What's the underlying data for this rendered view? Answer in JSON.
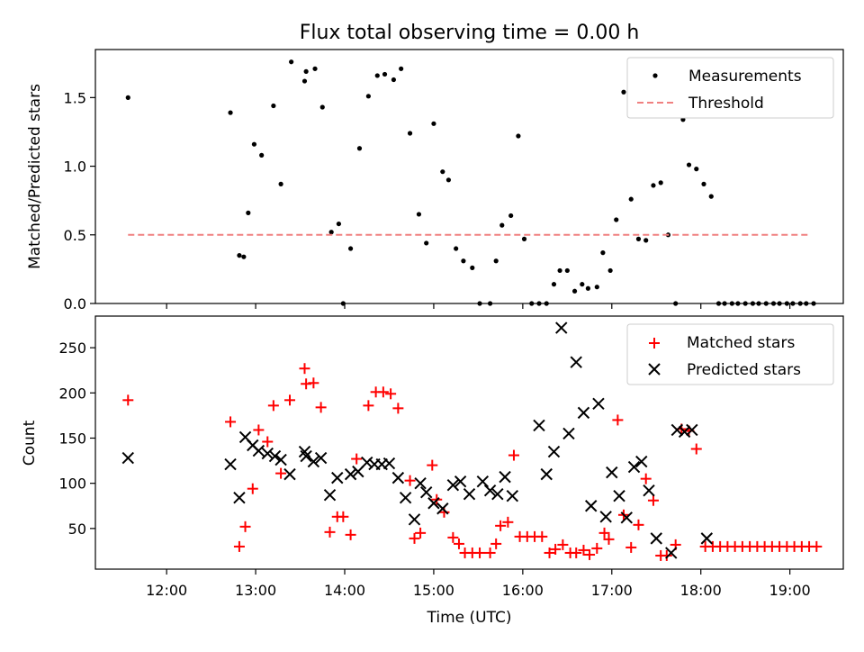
{
  "figure": {
    "title": "Flux total observing time = 0.00 h"
  },
  "chart_data": [
    {
      "type": "scatter",
      "title": "Flux total observing time = 0.00 h",
      "xlabel": "",
      "ylabel": "Matched/Predicted stars",
      "xlim": [
        "11:12",
        "19:36"
      ],
      "ylim": [
        0,
        1.85
      ],
      "yticks": [
        0.0,
        0.5,
        1.0,
        1.5
      ],
      "grid": false,
      "legend_placement": "top-right",
      "series": [
        {
          "name": "Measurements",
          "marker": "dot",
          "color": "#000000",
          "points": [
            [
              "11:34",
              1.5
            ],
            [
              "12:43",
              1.39
            ],
            [
              "12:55",
              0.66
            ],
            [
              "12:59",
              1.16
            ],
            [
              "13:04",
              1.08
            ],
            [
              "13:12",
              1.44
            ],
            [
              "13:17",
              0.87
            ],
            [
              "13:24",
              1.76
            ],
            [
              "13:33",
              1.62
            ],
            [
              "13:34",
              1.69
            ],
            [
              "13:40",
              1.71
            ],
            [
              "13:45",
              1.43
            ],
            [
              "13:51",
              0.52
            ],
            [
              "13:56",
              0.58
            ],
            [
              "13:59",
              0.0
            ],
            [
              "14:04",
              0.4
            ],
            [
              "14:10",
              1.13
            ],
            [
              "14:16",
              1.51
            ],
            [
              "14:22",
              1.66
            ],
            [
              "14:27",
              1.67
            ],
            [
              "14:33",
              1.63
            ],
            [
              "14:38",
              1.71
            ],
            [
              "14:44",
              1.24
            ],
            [
              "14:50",
              0.65
            ],
            [
              "14:55",
              0.44
            ],
            [
              "15:00",
              1.31
            ],
            [
              "15:06",
              0.96
            ],
            [
              "15:10",
              0.9
            ],
            [
              "15:15",
              0.4
            ],
            [
              "15:20",
              0.31
            ],
            [
              "15:26",
              0.26
            ],
            [
              "15:31",
              0.0
            ],
            [
              "15:38",
              0.0
            ],
            [
              "15:42",
              0.31
            ],
            [
              "15:46",
              0.57
            ],
            [
              "15:52",
              0.64
            ],
            [
              "15:57",
              1.22
            ],
            [
              "16:01",
              0.47
            ],
            [
              "16:06",
              0.0
            ],
            [
              "16:11",
              0.0
            ],
            [
              "16:16",
              0.0
            ],
            [
              "16:21",
              0.14
            ],
            [
              "16:25",
              0.24
            ],
            [
              "16:30",
              0.24
            ],
            [
              "16:35",
              0.09
            ],
            [
              "16:40",
              0.14
            ],
            [
              "16:44",
              0.11
            ],
            [
              "16:50",
              0.12
            ],
            [
              "16:54",
              0.37
            ],
            [
              "16:59",
              0.24
            ],
            [
              "17:03",
              0.61
            ],
            [
              "17:08",
              1.54
            ],
            [
              "17:13",
              0.76
            ],
            [
              "17:18",
              0.47
            ],
            [
              "17:23",
              0.46
            ],
            [
              "17:28",
              0.86
            ],
            [
              "17:33",
              0.88
            ],
            [
              "17:38",
              0.5
            ],
            [
              "17:43",
              0.0
            ],
            [
              "17:48",
              1.34
            ],
            [
              "17:52",
              1.01
            ],
            [
              "17:57",
              0.98
            ],
            [
              "18:02",
              0.87
            ],
            [
              "18:07",
              0.78
            ],
            [
              "18:12",
              0.0
            ],
            [
              "18:16",
              0.0
            ],
            [
              "18:21",
              0.0
            ],
            [
              "18:25",
              0.0
            ],
            [
              "18:30",
              0.0
            ],
            [
              "18:35",
              0.0
            ],
            [
              "18:39",
              0.0
            ],
            [
              "18:44",
              0.0
            ],
            [
              "18:49",
              0.0
            ],
            [
              "18:53",
              0.0
            ],
            [
              "18:58",
              0.0
            ],
            [
              "19:02",
              0.0
            ],
            [
              "19:07",
              0.0
            ],
            [
              "19:11",
              0.0
            ],
            [
              "19:16",
              0.0
            ],
            [
              "12:49",
              0.35
            ],
            [
              "12:52",
              0.34
            ]
          ]
        },
        {
          "name": "Threshold",
          "marker": "dashed-line",
          "color": "#f08080",
          "points": [
            [
              "11:34",
              0.5
            ],
            [
              "19:14",
              0.5
            ]
          ]
        }
      ]
    },
    {
      "type": "scatter",
      "title": "",
      "xlabel": "Time (UTC)",
      "ylabel": "Count",
      "xlim": [
        "11:12",
        "19:36"
      ],
      "ylim": [
        5,
        285
      ],
      "xticks": [
        "12:00",
        "13:00",
        "14:00",
        "15:00",
        "16:00",
        "17:00",
        "18:00",
        "19:00"
      ],
      "yticks": [
        50,
        100,
        150,
        200,
        250
      ],
      "grid": false,
      "legend_placement": "top-right",
      "series": [
        {
          "name": "Matched stars",
          "marker": "plus",
          "color": "#ff0000",
          "points": [
            [
              "11:34",
              192
            ],
            [
              "12:43",
              168
            ],
            [
              "12:49",
              30
            ],
            [
              "12:53",
              52
            ],
            [
              "12:58",
              94
            ],
            [
              "13:02",
              159
            ],
            [
              "13:08",
              146
            ],
            [
              "13:12",
              186
            ],
            [
              "13:17",
              111
            ],
            [
              "13:23",
              192
            ],
            [
              "13:33",
              227
            ],
            [
              "13:34",
              210
            ],
            [
              "13:39",
              211
            ],
            [
              "13:44",
              184
            ],
            [
              "13:50",
              46
            ],
            [
              "13:55",
              63
            ],
            [
              "13:59",
              63
            ],
            [
              "14:04",
              43
            ],
            [
              "14:08",
              127
            ],
            [
              "14:16",
              186
            ],
            [
              "14:21",
              201
            ],
            [
              "14:26",
              201
            ],
            [
              "14:31",
              199
            ],
            [
              "14:36",
              183
            ],
            [
              "14:44",
              103
            ],
            [
              "14:47",
              39
            ],
            [
              "14:51",
              45
            ],
            [
              "14:59",
              120
            ],
            [
              "15:02",
              82
            ],
            [
              "15:07",
              68
            ],
            [
              "15:13",
              40
            ],
            [
              "15:17",
              33
            ],
            [
              "15:21",
              23
            ],
            [
              "15:26",
              23
            ],
            [
              "15:31",
              23
            ],
            [
              "15:38",
              23
            ],
            [
              "15:42",
              33
            ],
            [
              "15:45",
              53
            ],
            [
              "15:50",
              57
            ],
            [
              "15:54",
              131
            ],
            [
              "15:58",
              41
            ],
            [
              "16:03",
              41
            ],
            [
              "16:08",
              41
            ],
            [
              "16:13",
              41
            ],
            [
              "16:18",
              23
            ],
            [
              "16:22",
              27
            ],
            [
              "16:27",
              32
            ],
            [
              "16:32",
              23
            ],
            [
              "16:36",
              23
            ],
            [
              "16:41",
              26
            ],
            [
              "16:45",
              21
            ],
            [
              "16:50",
              28
            ],
            [
              "16:55",
              45
            ],
            [
              "16:58",
              38
            ],
            [
              "17:04",
              170
            ],
            [
              "17:08",
              65
            ],
            [
              "17:13",
              29
            ],
            [
              "17:18",
              54
            ],
            [
              "17:23",
              105
            ],
            [
              "17:28",
              81
            ],
            [
              "17:33",
              20
            ],
            [
              "17:37",
              20
            ],
            [
              "17:43",
              32
            ],
            [
              "17:47",
              160
            ],
            [
              "17:52",
              158
            ],
            [
              "17:57",
              138
            ],
            [
              "18:03",
              30
            ],
            [
              "18:08",
              30
            ],
            [
              "18:13",
              30
            ],
            [
              "18:18",
              30
            ],
            [
              "18:23",
              30
            ],
            [
              "18:28",
              30
            ],
            [
              "18:33",
              30
            ],
            [
              "18:38",
              30
            ],
            [
              "18:43",
              30
            ],
            [
              "18:48",
              30
            ],
            [
              "18:53",
              30
            ],
            [
              "18:58",
              30
            ],
            [
              "19:03",
              30
            ],
            [
              "19:08",
              30
            ],
            [
              "19:13",
              30
            ],
            [
              "19:18",
              30
            ]
          ]
        },
        {
          "name": "Predicted stars",
          "marker": "x",
          "color": "#000000",
          "points": [
            [
              "11:34",
              128
            ],
            [
              "12:43",
              121
            ],
            [
              "12:49",
              84
            ],
            [
              "12:53",
              151
            ],
            [
              "12:58",
              142
            ],
            [
              "13:02",
              136
            ],
            [
              "13:08",
              133
            ],
            [
              "13:13",
              130
            ],
            [
              "13:17",
              126
            ],
            [
              "13:23",
              110
            ],
            [
              "13:33",
              135
            ],
            [
              "13:34",
              130
            ],
            [
              "13:39",
              124
            ],
            [
              "13:44",
              128
            ],
            [
              "13:50",
              87
            ],
            [
              "13:55",
              106
            ],
            [
              "14:04",
              110
            ],
            [
              "14:09",
              113
            ],
            [
              "14:15",
              123
            ],
            [
              "14:20",
              121
            ],
            [
              "14:25",
              121
            ],
            [
              "14:30",
              122
            ],
            [
              "14:36",
              106
            ],
            [
              "14:41",
              84
            ],
            [
              "14:47",
              60
            ],
            [
              "14:51",
              100
            ],
            [
              "14:55",
              90
            ],
            [
              "15:00",
              78
            ],
            [
              "15:06",
              72
            ],
            [
              "15:13",
              98
            ],
            [
              "15:18",
              102
            ],
            [
              "15:24",
              88
            ],
            [
              "15:33",
              102
            ],
            [
              "15:38",
              92
            ],
            [
              "15:43",
              88
            ],
            [
              "15:48",
              107
            ],
            [
              "15:53",
              86
            ],
            [
              "16:11",
              164
            ],
            [
              "16:16",
              110
            ],
            [
              "16:21",
              135
            ],
            [
              "16:26",
              272
            ],
            [
              "16:31",
              155
            ],
            [
              "16:36",
              234
            ],
            [
              "16:41",
              178
            ],
            [
              "16:46",
              75
            ],
            [
              "16:51",
              188
            ],
            [
              "16:56",
              63
            ],
            [
              "17:00",
              112
            ],
            [
              "17:05",
              86
            ],
            [
              "17:10",
              62
            ],
            [
              "17:15",
              118
            ],
            [
              "17:20",
              124
            ],
            [
              "17:25",
              92
            ],
            [
              "17:30",
              39
            ],
            [
              "17:40",
              23
            ],
            [
              "17:44",
              159
            ],
            [
              "17:49",
              157
            ],
            [
              "17:54",
              159
            ],
            [
              "18:04",
              39
            ]
          ]
        }
      ]
    }
  ]
}
